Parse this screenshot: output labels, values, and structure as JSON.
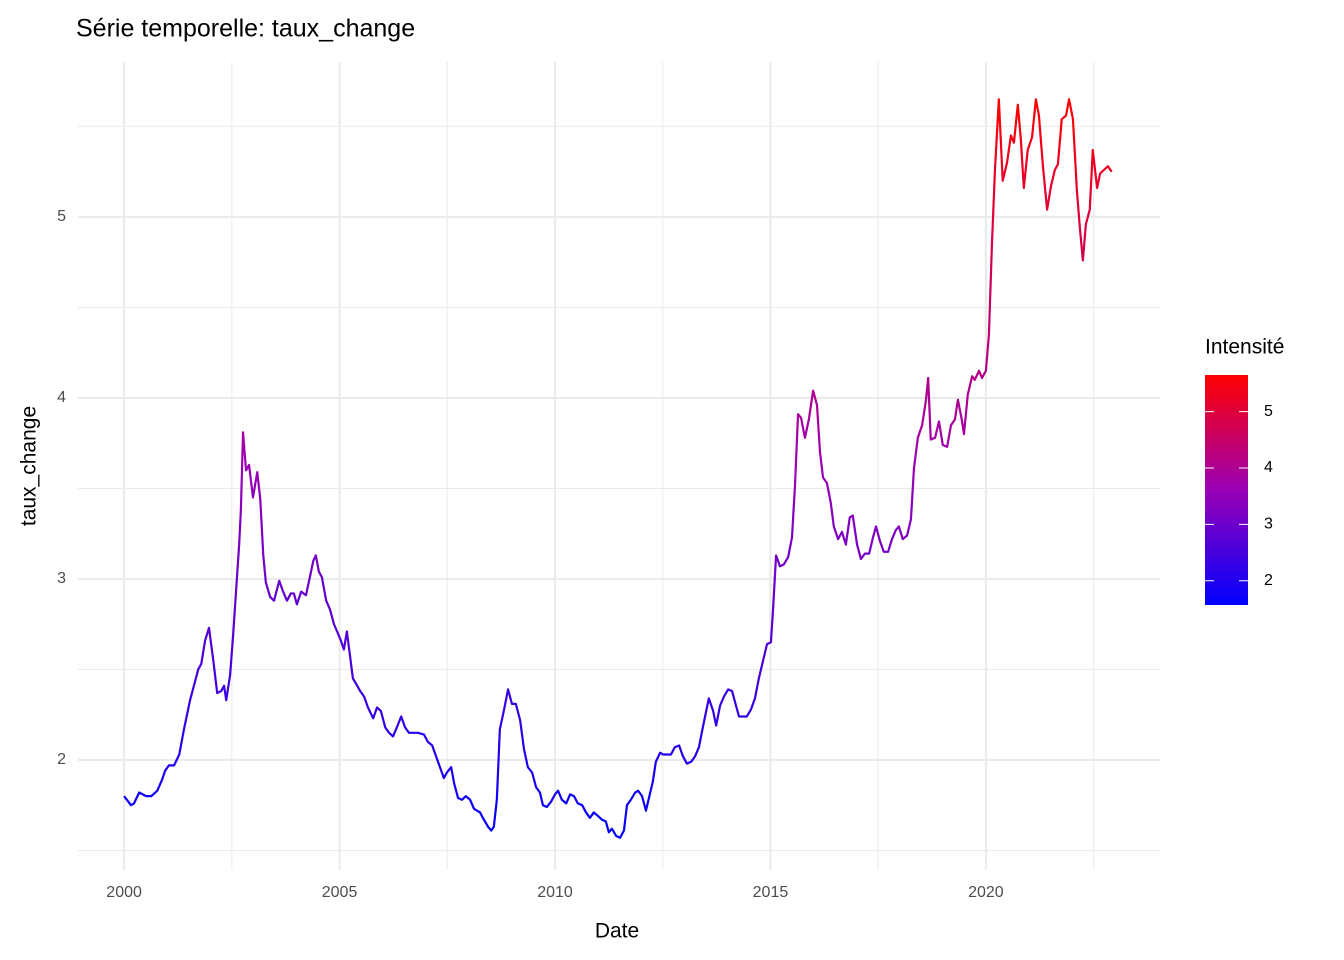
{
  "chart_data": {
    "type": "line",
    "title": "Série temporelle:  taux_change",
    "x_label": "Date",
    "y_label": "taux_change",
    "x": [
      2000.0,
      2000.16,
      2000.23,
      2000.35,
      2000.51,
      2000.63,
      2000.77,
      2000.88,
      2000.95,
      2001.04,
      2001.16,
      2001.28,
      2001.39,
      2001.53,
      2001.62,
      2001.72,
      2001.79,
      2001.88,
      2001.97,
      2002.07,
      2002.16,
      2002.25,
      2002.32,
      2002.37,
      2002.46,
      2002.53,
      2002.6,
      2002.67,
      2002.71,
      2002.76,
      2002.83,
      2002.9,
      2002.99,
      2003.09,
      2003.16,
      2003.23,
      2003.29,
      2003.39,
      2003.48,
      2003.6,
      2003.69,
      2003.78,
      2003.87,
      2003.94,
      2004.01,
      2004.11,
      2004.22,
      2004.32,
      2004.39,
      2004.45,
      2004.52,
      2004.59,
      2004.69,
      2004.78,
      2004.87,
      2004.96,
      2005.03,
      2005.1,
      2005.17,
      2005.24,
      2005.31,
      2005.41,
      2005.48,
      2005.57,
      2005.66,
      2005.78,
      2005.87,
      2005.96,
      2006.06,
      2006.15,
      2006.24,
      2006.33,
      2006.43,
      2006.52,
      2006.61,
      2006.73,
      2006.82,
      2006.96,
      2007.05,
      2007.15,
      2007.24,
      2007.33,
      2007.42,
      2007.49,
      2007.59,
      2007.66,
      2007.75,
      2007.84,
      2007.93,
      2008.03,
      2008.12,
      2008.26,
      2008.35,
      2008.45,
      2008.52,
      2008.58,
      2008.65,
      2008.72,
      2008.82,
      2008.91,
      2009.0,
      2009.09,
      2009.19,
      2009.28,
      2009.37,
      2009.47,
      2009.56,
      2009.65,
      2009.72,
      2009.81,
      2009.91,
      2010.0,
      2010.07,
      2010.16,
      2010.26,
      2010.35,
      2010.44,
      2010.53,
      2010.63,
      2010.72,
      2010.81,
      2010.9,
      2011.0,
      2011.09,
      2011.18,
      2011.25,
      2011.32,
      2011.42,
      2011.51,
      2011.6,
      2011.67,
      2011.76,
      2011.86,
      2011.93,
      2012.02,
      2012.11,
      2012.2,
      2012.27,
      2012.34,
      2012.44,
      2012.51,
      2012.6,
      2012.69,
      2012.78,
      2012.88,
      2012.97,
      2013.06,
      2013.16,
      2013.25,
      2013.34,
      2013.43,
      2013.5,
      2013.57,
      2013.67,
      2013.74,
      2013.83,
      2013.92,
      2014.02,
      2014.11,
      2014.2,
      2014.27,
      2014.36,
      2014.45,
      2014.55,
      2014.64,
      2014.73,
      2014.83,
      2014.92,
      2015.01,
      2015.06,
      2015.13,
      2015.22,
      2015.31,
      2015.41,
      2015.5,
      2015.57,
      2015.64,
      2015.71,
      2015.8,
      2015.89,
      2015.99,
      2016.08,
      2016.15,
      2016.22,
      2016.31,
      2016.4,
      2016.47,
      2016.57,
      2016.66,
      2016.75,
      2016.84,
      2016.91,
      2017.01,
      2017.1,
      2017.19,
      2017.29,
      2017.38,
      2017.45,
      2017.54,
      2017.63,
      2017.73,
      2017.82,
      2017.91,
      2017.98,
      2018.07,
      2018.17,
      2018.26,
      2018.33,
      2018.42,
      2018.52,
      2018.61,
      2018.66,
      2018.72,
      2018.82,
      2018.91,
      2019.0,
      2019.1,
      2019.19,
      2019.28,
      2019.35,
      2019.44,
      2019.49,
      2019.58,
      2019.68,
      2019.74,
      2019.84,
      2019.91,
      2020.0,
      2020.07,
      2020.14,
      2020.21,
      2020.3,
      2020.39,
      2020.49,
      2020.58,
      2020.65,
      2020.74,
      2020.81,
      2020.88,
      2020.97,
      2021.07,
      2021.16,
      2021.23,
      2021.32,
      2021.42,
      2021.51,
      2021.6,
      2021.67,
      2021.76,
      2021.86,
      2021.93,
      2022.02,
      2022.11,
      2022.18,
      2022.25,
      2022.32,
      2022.41,
      2022.48,
      2022.58,
      2022.65,
      2022.74,
      2022.83,
      2022.92
    ],
    "values": [
      1.8,
      1.75,
      1.76,
      1.82,
      1.8,
      1.8,
      1.83,
      1.89,
      1.94,
      1.97,
      1.97,
      2.03,
      2.17,
      2.33,
      2.41,
      2.5,
      2.53,
      2.66,
      2.73,
      2.55,
      2.37,
      2.38,
      2.41,
      2.33,
      2.47,
      2.69,
      2.94,
      3.19,
      3.38,
      3.81,
      3.6,
      3.63,
      3.45,
      3.59,
      3.44,
      3.13,
      2.98,
      2.9,
      2.88,
      2.99,
      2.93,
      2.88,
      2.92,
      2.92,
      2.86,
      2.93,
      2.91,
      3.02,
      3.1,
      3.13,
      3.04,
      3.01,
      2.88,
      2.83,
      2.75,
      2.7,
      2.66,
      2.61,
      2.71,
      2.58,
      2.45,
      2.41,
      2.38,
      2.35,
      2.29,
      2.23,
      2.29,
      2.27,
      2.18,
      2.15,
      2.13,
      2.18,
      2.24,
      2.18,
      2.15,
      2.15,
      2.15,
      2.14,
      2.1,
      2.08,
      2.02,
      1.96,
      1.9,
      1.93,
      1.96,
      1.87,
      1.79,
      1.78,
      1.8,
      1.78,
      1.73,
      1.71,
      1.67,
      1.63,
      1.61,
      1.63,
      1.78,
      2.17,
      2.28,
      2.39,
      2.31,
      2.31,
      2.22,
      2.06,
      1.96,
      1.93,
      1.85,
      1.82,
      1.75,
      1.74,
      1.77,
      1.81,
      1.83,
      1.78,
      1.76,
      1.81,
      1.8,
      1.76,
      1.75,
      1.71,
      1.68,
      1.71,
      1.69,
      1.67,
      1.66,
      1.6,
      1.62,
      1.58,
      1.57,
      1.61,
      1.75,
      1.78,
      1.82,
      1.83,
      1.8,
      1.72,
      1.81,
      1.88,
      1.99,
      2.04,
      2.03,
      2.03,
      2.03,
      2.07,
      2.08,
      2.02,
      1.98,
      1.99,
      2.02,
      2.07,
      2.18,
      2.26,
      2.34,
      2.27,
      2.19,
      2.3,
      2.35,
      2.39,
      2.38,
      2.3,
      2.24,
      2.24,
      2.24,
      2.28,
      2.34,
      2.45,
      2.55,
      2.64,
      2.65,
      2.83,
      3.13,
      3.07,
      3.08,
      3.12,
      3.23,
      3.52,
      3.91,
      3.89,
      3.78,
      3.88,
      4.04,
      3.96,
      3.7,
      3.56,
      3.53,
      3.42,
      3.29,
      3.22,
      3.26,
      3.19,
      3.34,
      3.35,
      3.19,
      3.11,
      3.14,
      3.14,
      3.23,
      3.29,
      3.21,
      3.15,
      3.15,
      3.22,
      3.27,
      3.29,
      3.22,
      3.24,
      3.33,
      3.61,
      3.78,
      3.85,
      3.99,
      4.11,
      3.77,
      3.78,
      3.87,
      3.74,
      3.73,
      3.85,
      3.88,
      3.99,
      3.88,
      3.8,
      4.02,
      4.12,
      4.1,
      4.15,
      4.11,
      4.15,
      4.35,
      4.85,
      5.26,
      5.65,
      5.2,
      5.3,
      5.45,
      5.41,
      5.62,
      5.43,
      5.16,
      5.37,
      5.44,
      5.65,
      5.56,
      5.29,
      5.04,
      5.17,
      5.26,
      5.29,
      5.54,
      5.56,
      5.65,
      5.54,
      5.15,
      4.94,
      4.76,
      4.96,
      5.04,
      5.37,
      5.16,
      5.24,
      5.26,
      5.28,
      5.25
    ],
    "xlim": [
      1998.93,
      2024.04
    ],
    "xticks": [
      2000,
      2005,
      2010,
      2015,
      2020
    ],
    "x_minor_ticks": [
      2002.5,
      2007.5,
      2012.5,
      2017.5,
      2022.5
    ],
    "ylim": [
      1.392,
      5.856
    ],
    "yticks": [
      2,
      3,
      4,
      5
    ],
    "y_minor_ticks": [
      1.5,
      2.5,
      3.5,
      4.5,
      5.5
    ],
    "grid": true,
    "color_scale": {
      "title": "Intensité",
      "low": "#0000FF",
      "mid": "#9A00B5",
      "high": "#FF0000",
      "limits": [
        1.57,
        5.65
      ],
      "ticks": [
        2,
        3,
        4,
        5
      ]
    }
  }
}
